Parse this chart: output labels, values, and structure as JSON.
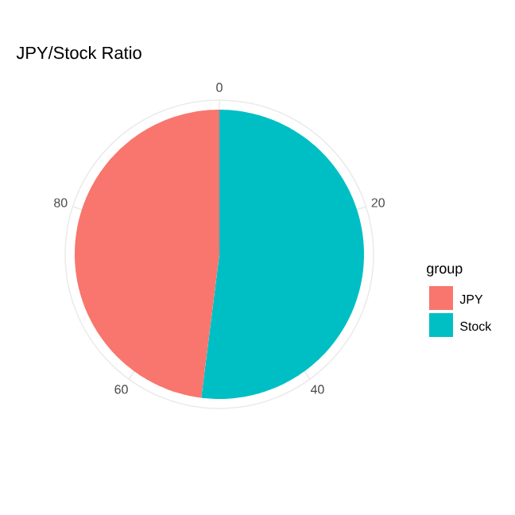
{
  "chart_data": {
    "type": "pie",
    "title": "JPY/Stock Ratio",
    "legend_title": "group",
    "categories": [
      "JPY",
      "Stock"
    ],
    "values": [
      48,
      52
    ],
    "colors": [
      "#f8766d",
      "#00bfc4"
    ],
    "annotations": [
      "0",
      "20",
      "40",
      "60",
      "80"
    ],
    "grid": true,
    "legend": "right"
  }
}
